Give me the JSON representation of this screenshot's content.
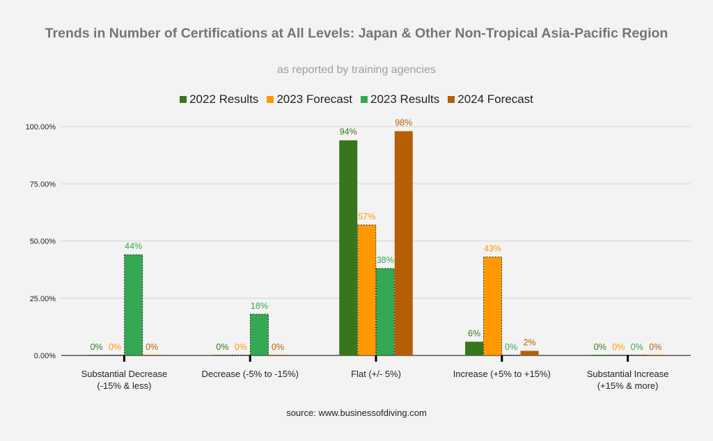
{
  "chart_data": {
    "type": "bar",
    "title": "Trends in Number of Certifications at All Levels: Japan & Other Non-Tropical Asia-Pacific Region",
    "subtitle": "as reported by training agencies",
    "source": "source: www.businessofdiving.com",
    "categories": [
      [
        "Substantial Decrease",
        "(-15% & less)"
      ],
      [
        "Decrease (-5% to -15%)"
      ],
      [
        "Flat (+/- 5%)"
      ],
      [
        "Increase (+5% to +15%)"
      ],
      [
        "Substantial Increase",
        "(+15% & more)"
      ]
    ],
    "series": [
      {
        "name": "2022 Results",
        "color": "#38761d",
        "dashed": false,
        "values": [
          0,
          0,
          94,
          6,
          0
        ],
        "labels": [
          "0%",
          "0%",
          "94%",
          "6%",
          "0%"
        ]
      },
      {
        "name": "2023 Forecast",
        "color": "#ff9900",
        "dashed": true,
        "values": [
          0,
          0,
          57,
          43,
          0
        ],
        "labels": [
          "0%",
          "0%",
          "57%",
          "43%",
          "0%"
        ]
      },
      {
        "name": "2023 Results",
        "color": "#34a853",
        "dashed": true,
        "values": [
          44,
          18,
          38,
          0,
          0
        ],
        "labels": [
          "44%",
          "18%",
          "38%",
          "0%",
          "0%"
        ]
      },
      {
        "name": "2024 Forecast",
        "color": "#b45f06",
        "dashed": false,
        "values": [
          0,
          0,
          98,
          2,
          0
        ],
        "labels": [
          "0%",
          "0%",
          "98%",
          "2%",
          "0%"
        ]
      }
    ],
    "yticks": [
      "0.00%",
      "25.00%",
      "50.00%",
      "75.00%",
      "100.00%"
    ],
    "ylim": [
      0,
      100
    ],
    "grid": true,
    "legend_position": "top"
  }
}
